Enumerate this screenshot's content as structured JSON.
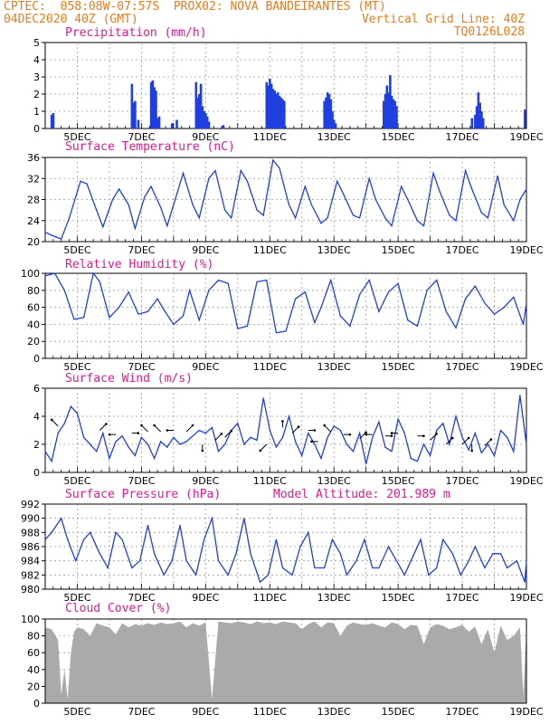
{
  "header": {
    "line1_left": "CPTEC:  058:08W-07:57S  PROX02: NOVA BANDEIRANTES (MT)",
    "line2_left": "04DEC2020 40Z (GMT)",
    "line2_right": "Vertical Grid Line: 40Z",
    "line3_right": "TQ0126L028"
  },
  "colors": {
    "header": "#e87a1a",
    "title": "#e0188c",
    "series": "#1f3fe0",
    "cloud": "#aaaaaa",
    "grid": "#999999"
  },
  "chart_data": [
    {
      "type": "bar",
      "title": "Precipitation (mm/h)",
      "ylim": [
        0,
        5
      ],
      "yticks": [
        "0",
        "1",
        "2",
        "3",
        "4",
        "5"
      ],
      "xticks": [
        "5DEC",
        "7DEC",
        "9DEC",
        "11DEC",
        "13DEC",
        "15DEC",
        "17DEC",
        "19DEC"
      ],
      "x": [
        4.2,
        4.25,
        6.7,
        6.75,
        6.8,
        6.9,
        7.3,
        7.35,
        7.4,
        7.45,
        7.5,
        7.55,
        7.95,
        8.1,
        8.7,
        8.75,
        8.8,
        8.85,
        8.9,
        8.95,
        9.0,
        9.05,
        9.1,
        9.55,
        10.9,
        10.95,
        11.0,
        11.05,
        11.1,
        11.15,
        11.2,
        11.25,
        11.3,
        11.35,
        11.4,
        11.45,
        12.7,
        12.75,
        12.8,
        12.85,
        12.9,
        12.95,
        13.0,
        13.05,
        14.55,
        14.6,
        14.65,
        14.7,
        14.75,
        14.8,
        14.85,
        14.9,
        14.95,
        17.3,
        17.4,
        17.45,
        17.5,
        17.55,
        17.6,
        17.65,
        18.95
      ],
      "values": [
        0.8,
        0.9,
        2.6,
        1.5,
        1.6,
        0.5,
        2.7,
        2.8,
        2.4,
        2.2,
        0.6,
        0.7,
        0.3,
        0.5,
        2.7,
        1.8,
        2.0,
        2.6,
        1.3,
        1.0,
        0.9,
        0.7,
        0.4,
        0.2,
        2.7,
        2.5,
        2.9,
        2.6,
        2.3,
        2.2,
        2.0,
        2.1,
        1.9,
        1.8,
        1.7,
        1.6,
        1.6,
        1.8,
        2.1,
        2.0,
        1.7,
        1.0,
        0.5,
        0.3,
        1.6,
        2.0,
        2.5,
        2.1,
        3.1,
        1.9,
        1.7,
        1.6,
        1.3,
        0.6,
        0.8,
        1.3,
        2.1,
        1.5,
        1.0,
        0.6,
        1.1
      ]
    },
    {
      "type": "line",
      "title": "Surface Temperature (nC)",
      "ylim": [
        20,
        36
      ],
      "yticks": [
        "20",
        "24",
        "28",
        "32",
        "36"
      ],
      "xticks": [
        "5DEC",
        "7DEC",
        "9DEC",
        "11DEC",
        "13DEC",
        "15DEC",
        "17DEC",
        "19DEC"
      ],
      "x": [
        4.0,
        4.2,
        4.5,
        4.75,
        5.1,
        5.3,
        5.6,
        5.8,
        6.1,
        6.3,
        6.6,
        6.8,
        7.1,
        7.3,
        7.6,
        7.8,
        8.1,
        8.3,
        8.6,
        8.8,
        9.1,
        9.3,
        9.6,
        9.8,
        10.1,
        10.3,
        10.6,
        10.8,
        11.1,
        11.3,
        11.6,
        11.8,
        12.1,
        12.3,
        12.6,
        12.8,
        13.1,
        13.3,
        13.6,
        13.8,
        14.1,
        14.3,
        14.6,
        14.8,
        15.1,
        15.3,
        15.6,
        15.8,
        16.1,
        16.3,
        16.6,
        16.8,
        17.1,
        17.3,
        17.6,
        17.8,
        18.1,
        18.3,
        18.6,
        18.8,
        19.0
      ],
      "values": [
        21.8,
        21.2,
        20.5,
        24.5,
        31.5,
        31.0,
        26.0,
        22.8,
        28.0,
        30.0,
        27.0,
        22.5,
        28.5,
        30.5,
        26.5,
        23.0,
        29.0,
        33.0,
        27.0,
        24.5,
        32.0,
        33.5,
        26.0,
        24.5,
        33.5,
        31.5,
        26.0,
        25.0,
        35.5,
        34.0,
        27.0,
        24.5,
        30.5,
        27.0,
        23.5,
        24.5,
        31.5,
        29.0,
        25.0,
        24.5,
        32.0,
        28.0,
        24.5,
        23.0,
        30.5,
        28.0,
        24.0,
        23.0,
        33.0,
        29.5,
        25.0,
        24.0,
        33.5,
        30.0,
        25.5,
        24.5,
        32.5,
        27.0,
        24.0,
        28.0,
        30.0
      ]
    },
    {
      "type": "line",
      "title": "Relative Humidity (%)",
      "ylim": [
        0,
        100
      ],
      "yticks": [
        "0",
        "20",
        "40",
        "60",
        "80",
        "100"
      ],
      "xticks": [
        "5DEC",
        "7DEC",
        "9DEC",
        "11DEC",
        "13DEC",
        "15DEC",
        "17DEC",
        "19DEC"
      ],
      "x": [
        4.0,
        4.3,
        4.6,
        4.9,
        5.2,
        5.5,
        5.7,
        6.0,
        6.3,
        6.6,
        6.9,
        7.2,
        7.5,
        7.7,
        8.0,
        8.3,
        8.5,
        8.8,
        9.1,
        9.4,
        9.7,
        10.0,
        10.3,
        10.6,
        10.9,
        11.2,
        11.5,
        11.8,
        12.1,
        12.4,
        12.6,
        12.9,
        13.2,
        13.5,
        13.8,
        14.1,
        14.4,
        14.7,
        15.0,
        15.3,
        15.6,
        15.9,
        16.2,
        16.5,
        16.8,
        17.1,
        17.4,
        17.7,
        18.0,
        18.3,
        18.6,
        18.9,
        19.0
      ],
      "values": [
        97,
        100,
        80,
        46,
        48,
        100,
        90,
        48,
        60,
        78,
        52,
        55,
        70,
        57,
        40,
        50,
        80,
        45,
        80,
        92,
        88,
        35,
        38,
        90,
        92,
        30,
        32,
        70,
        78,
        42,
        60,
        92,
        50,
        38,
        75,
        92,
        55,
        78,
        88,
        45,
        38,
        80,
        92,
        55,
        36,
        70,
        85,
        65,
        52,
        60,
        72,
        40,
        65
      ]
    },
    {
      "type": "line",
      "title": "Surface Wind (m/s)",
      "ylim": [
        0,
        6
      ],
      "yticks": [
        "0",
        "2",
        "4",
        "6"
      ],
      "xticks": [
        "5DEC",
        "7DEC",
        "9DEC",
        "11DEC",
        "13DEC",
        "15DEC",
        "17DEC",
        "19DEC"
      ],
      "x": [
        4.0,
        4.2,
        4.4,
        4.6,
        4.8,
        5.0,
        5.2,
        5.4,
        5.6,
        5.8,
        6.0,
        6.2,
        6.4,
        6.6,
        6.8,
        7.0,
        7.2,
        7.4,
        7.6,
        7.8,
        8.0,
        8.2,
        8.4,
        8.6,
        8.8,
        9.0,
        9.2,
        9.4,
        9.6,
        9.8,
        10.0,
        10.2,
        10.4,
        10.6,
        10.8,
        11.0,
        11.2,
        11.4,
        11.6,
        11.8,
        12.0,
        12.2,
        12.4,
        12.6,
        12.8,
        13.0,
        13.2,
        13.4,
        13.6,
        13.8,
        14.0,
        14.2,
        14.4,
        14.6,
        14.8,
        15.0,
        15.2,
        15.4,
        15.6,
        15.8,
        16.0,
        16.2,
        16.4,
        16.6,
        16.8,
        17.0,
        17.2,
        17.4,
        17.6,
        17.8,
        18.0,
        18.2,
        18.4,
        18.6,
        18.8,
        19.0
      ],
      "values": [
        1.5,
        0.8,
        2.8,
        3.5,
        4.7,
        4.2,
        2.5,
        2.0,
        1.5,
        2.8,
        1.0,
        2.2,
        2.6,
        1.8,
        1.2,
        2.5,
        2.0,
        1.0,
        2.2,
        1.8,
        2.5,
        2.0,
        2.2,
        2.6,
        3.0,
        2.8,
        3.2,
        1.5,
        2.0,
        3.0,
        3.5,
        2.0,
        2.5,
        2.3,
        5.3,
        3.0,
        1.8,
        2.5,
        4.0,
        2.2,
        1.2,
        2.8,
        2.0,
        1.0,
        2.5,
        3.3,
        3.0,
        2.0,
        1.5,
        2.8,
        0.6,
        2.5,
        3.6,
        1.8,
        1.5,
        3.8,
        2.8,
        1.0,
        0.8,
        2.0,
        1.2,
        3.0,
        3.5,
        2.0,
        4.0,
        2.5,
        1.6,
        2.8,
        1.4,
        2.0,
        1.2,
        3.0,
        2.5,
        1.5,
        5.5,
        2.0
      ]
    },
    {
      "type": "line",
      "title": "Surface Pressure (hPa)",
      "annotation": "Model Altitude: 201.989 m",
      "ylim": [
        980,
        992
      ],
      "yticks": [
        "980",
        "982",
        "984",
        "986",
        "988",
        "990",
        "992"
      ],
      "xticks": [
        "5DEC",
        "7DEC",
        "9DEC",
        "11DEC",
        "13DEC",
        "15DEC",
        "17DEC",
        "19DEC"
      ],
      "x": [
        4.0,
        4.2,
        4.5,
        4.7,
        4.95,
        5.2,
        5.4,
        5.7,
        5.95,
        6.2,
        6.4,
        6.7,
        6.95,
        7.2,
        7.4,
        7.7,
        7.95,
        8.2,
        8.4,
        8.7,
        8.95,
        9.2,
        9.4,
        9.7,
        9.95,
        10.2,
        10.4,
        10.7,
        10.95,
        11.2,
        11.4,
        11.7,
        11.95,
        12.2,
        12.4,
        12.7,
        12.95,
        13.2,
        13.4,
        13.7,
        13.95,
        14.2,
        14.4,
        14.7,
        14.95,
        15.2,
        15.4,
        15.7,
        15.95,
        16.2,
        16.4,
        16.7,
        16.95,
        17.2,
        17.4,
        17.7,
        17.95,
        18.2,
        18.4,
        18.7,
        18.95,
        19.0
      ],
      "values": [
        987,
        988,
        990,
        987,
        984,
        987,
        988,
        985,
        983,
        988,
        987,
        983,
        984,
        989,
        985,
        982,
        984,
        989,
        984,
        982,
        987,
        990,
        984,
        982,
        985,
        990,
        985,
        981,
        982,
        987,
        983,
        982,
        986,
        988,
        983,
        983,
        987,
        985,
        982,
        984,
        987,
        983,
        983,
        986,
        984,
        982,
        984,
        987,
        982,
        983,
        987,
        985,
        982,
        984,
        986,
        983,
        985,
        985,
        983,
        984,
        981,
        984
      ]
    },
    {
      "type": "area",
      "title": "Cloud Cover (%)",
      "ylim": [
        0,
        100
      ],
      "yticks": [
        "0",
        "20",
        "40",
        "60",
        "80",
        "100"
      ],
      "xticks": [
        "5DEC",
        "7DEC",
        "9DEC",
        "11DEC",
        "13DEC",
        "15DEC",
        "17DEC",
        "19DEC"
      ],
      "x": [
        4.0,
        4.2,
        4.4,
        4.5,
        4.6,
        4.7,
        4.8,
        4.9,
        5.0,
        5.2,
        5.4,
        5.6,
        5.8,
        6.0,
        6.2,
        6.4,
        6.6,
        6.8,
        7.0,
        7.2,
        7.4,
        7.6,
        7.8,
        8.0,
        8.2,
        8.4,
        8.6,
        8.8,
        9.0,
        9.2,
        9.4,
        9.6,
        9.8,
        10.0,
        10.2,
        10.4,
        10.6,
        10.8,
        11.0,
        11.2,
        11.4,
        11.6,
        11.8,
        12.0,
        12.2,
        12.4,
        12.6,
        12.8,
        13.0,
        13.2,
        13.4,
        13.6,
        13.8,
        14.0,
        14.2,
        14.4,
        14.6,
        14.8,
        15.0,
        15.2,
        15.4,
        15.6,
        15.8,
        16.0,
        16.2,
        16.4,
        16.6,
        16.8,
        17.0,
        17.2,
        17.4,
        17.6,
        17.8,
        18.0,
        18.2,
        18.4,
        18.6,
        18.8,
        18.9,
        19.0
      ],
      "values": [
        90,
        88,
        75,
        10,
        40,
        5,
        60,
        85,
        90,
        88,
        80,
        95,
        92,
        90,
        82,
        95,
        90,
        94,
        92,
        95,
        93,
        96,
        94,
        95,
        97,
        90,
        95,
        92,
        96,
        5,
        97,
        96,
        95,
        97,
        96,
        94,
        97,
        95,
        96,
        94,
        97,
        96,
        95,
        88,
        94,
        97,
        90,
        96,
        95,
        80,
        92,
        96,
        94,
        93,
        95,
        92,
        90,
        96,
        94,
        88,
        93,
        92,
        70,
        90,
        94,
        92,
        88,
        90,
        93,
        85,
        91,
        70,
        88,
        60,
        92,
        75,
        80,
        90,
        10,
        90
      ]
    }
  ]
}
